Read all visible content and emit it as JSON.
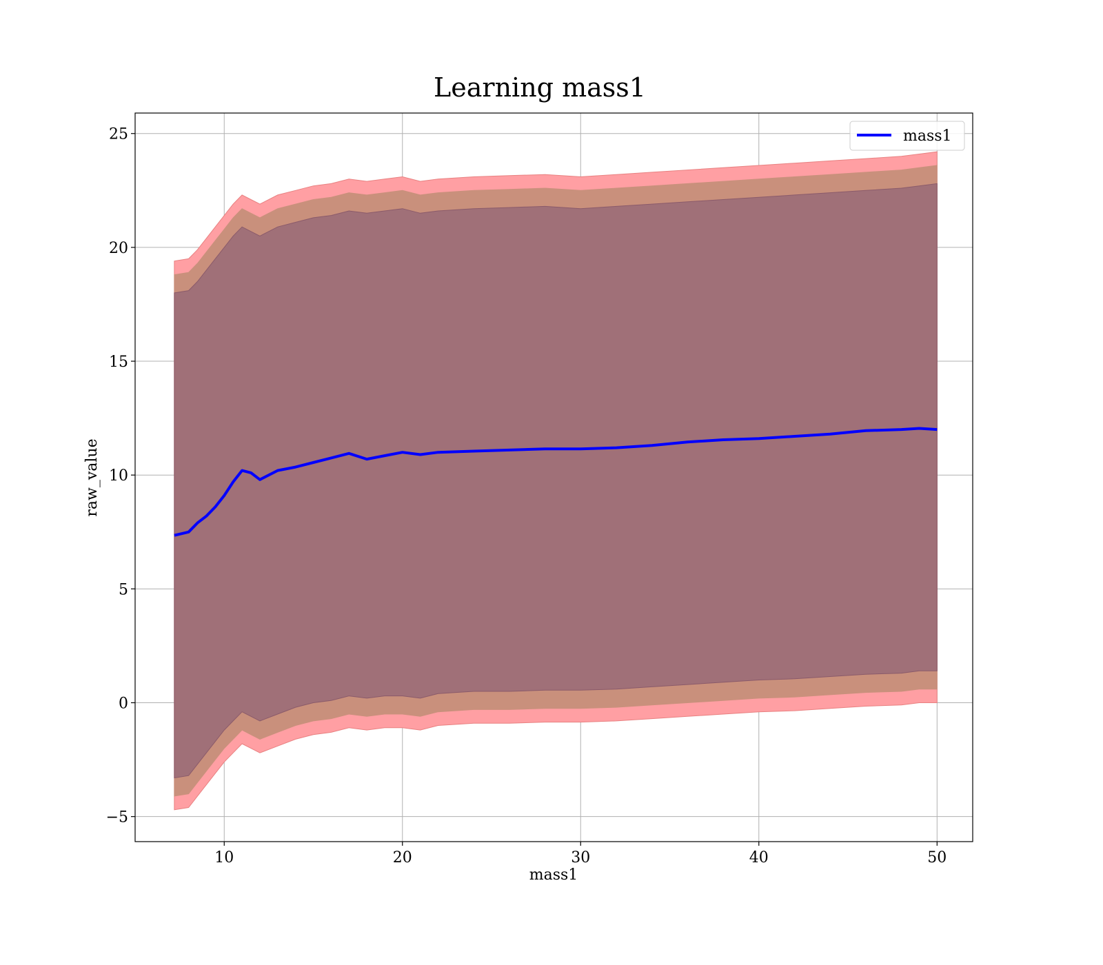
{
  "chart_data": {
    "type": "line",
    "title": "Learning mass1",
    "xlabel": "mass1",
    "ylabel": "raw_value",
    "xlim": [
      5,
      52
    ],
    "ylim": [
      -6.1,
      25.9
    ],
    "xticks": [
      10,
      20,
      30,
      40,
      50
    ],
    "yticks": [
      -5,
      0,
      5,
      10,
      15,
      20,
      25
    ],
    "grid": true,
    "legend": {
      "position": "top-right",
      "entries": [
        "mass1"
      ]
    },
    "colors": {
      "line": "#0000ff",
      "band_outer": "#ff9fa3",
      "band_middle": "#c9907c",
      "band_inner": "#a07078",
      "band_outer_edge": "#e88080",
      "band_inner_edge": "#8a5a6a",
      "grid": "#b0b0b0"
    },
    "series": [
      {
        "name": "mass1",
        "x": [
          7.2,
          8.0,
          8.5,
          9.0,
          9.5,
          10.0,
          10.5,
          11.0,
          11.5,
          12.0,
          13.0,
          14.0,
          15.0,
          16.0,
          17.0,
          18.0,
          19.0,
          20.0,
          21.0,
          22.0,
          24.0,
          26.0,
          28.0,
          30.0,
          32.0,
          34.0,
          36.0,
          38.0,
          40.0,
          42.0,
          44.0,
          46.0,
          48.0,
          49.0,
          50.0
        ],
        "y": [
          7.35,
          7.5,
          7.9,
          8.2,
          8.6,
          9.1,
          9.7,
          10.2,
          10.1,
          9.8,
          10.2,
          10.35,
          10.55,
          10.75,
          10.95,
          10.7,
          10.85,
          11.0,
          10.9,
          11.0,
          11.05,
          11.1,
          11.15,
          11.15,
          11.2,
          11.3,
          11.45,
          11.55,
          11.6,
          11.7,
          11.8,
          11.95,
          12.0,
          12.05,
          12.0
        ]
      }
    ],
    "bands": [
      {
        "name": "outer",
        "upper": [
          19.4,
          19.5,
          19.9,
          20.4,
          20.9,
          21.4,
          21.9,
          22.3,
          22.1,
          21.9,
          22.3,
          22.5,
          22.7,
          22.8,
          23.0,
          22.9,
          23.0,
          23.1,
          22.9,
          23.0,
          23.1,
          23.15,
          23.2,
          23.1,
          23.2,
          23.3,
          23.4,
          23.5,
          23.6,
          23.7,
          23.8,
          23.9,
          24.0,
          24.1,
          24.2
        ],
        "lower": [
          -4.7,
          -4.6,
          -4.1,
          -3.6,
          -3.1,
          -2.6,
          -2.2,
          -1.8,
          -2.0,
          -2.2,
          -1.9,
          -1.6,
          -1.4,
          -1.3,
          -1.1,
          -1.2,
          -1.1,
          -1.1,
          -1.2,
          -1.0,
          -0.9,
          -0.9,
          -0.85,
          -0.85,
          -0.8,
          -0.7,
          -0.6,
          -0.5,
          -0.4,
          -0.35,
          -0.25,
          -0.15,
          -0.1,
          0.0,
          0.0
        ]
      },
      {
        "name": "middle",
        "upper": [
          18.8,
          18.9,
          19.3,
          19.8,
          20.3,
          20.8,
          21.3,
          21.7,
          21.5,
          21.3,
          21.7,
          21.9,
          22.1,
          22.2,
          22.4,
          22.3,
          22.4,
          22.5,
          22.3,
          22.4,
          22.5,
          22.55,
          22.6,
          22.5,
          22.6,
          22.7,
          22.8,
          22.9,
          23.0,
          23.1,
          23.2,
          23.3,
          23.4,
          23.5,
          23.6
        ],
        "lower": [
          -4.1,
          -4.0,
          -3.5,
          -3.0,
          -2.5,
          -2.0,
          -1.6,
          -1.2,
          -1.4,
          -1.6,
          -1.3,
          -1.0,
          -0.8,
          -0.7,
          -0.5,
          -0.6,
          -0.5,
          -0.5,
          -0.6,
          -0.4,
          -0.3,
          -0.3,
          -0.25,
          -0.25,
          -0.2,
          -0.1,
          0.0,
          0.1,
          0.2,
          0.25,
          0.35,
          0.45,
          0.5,
          0.6,
          0.6
        ]
      },
      {
        "name": "inner",
        "upper": [
          18.0,
          18.1,
          18.5,
          19.0,
          19.5,
          20.0,
          20.5,
          20.9,
          20.7,
          20.5,
          20.9,
          21.1,
          21.3,
          21.4,
          21.6,
          21.5,
          21.6,
          21.7,
          21.5,
          21.6,
          21.7,
          21.75,
          21.8,
          21.7,
          21.8,
          21.9,
          22.0,
          22.1,
          22.2,
          22.3,
          22.4,
          22.5,
          22.6,
          22.7,
          22.8
        ],
        "lower": [
          -3.3,
          -3.2,
          -2.7,
          -2.2,
          -1.7,
          -1.2,
          -0.8,
          -0.4,
          -0.6,
          -0.8,
          -0.5,
          -0.2,
          0.0,
          0.1,
          0.3,
          0.2,
          0.3,
          0.3,
          0.2,
          0.4,
          0.5,
          0.5,
          0.55,
          0.55,
          0.6,
          0.7,
          0.8,
          0.9,
          1.0,
          1.05,
          1.15,
          1.25,
          1.3,
          1.4,
          1.4
        ]
      }
    ]
  }
}
